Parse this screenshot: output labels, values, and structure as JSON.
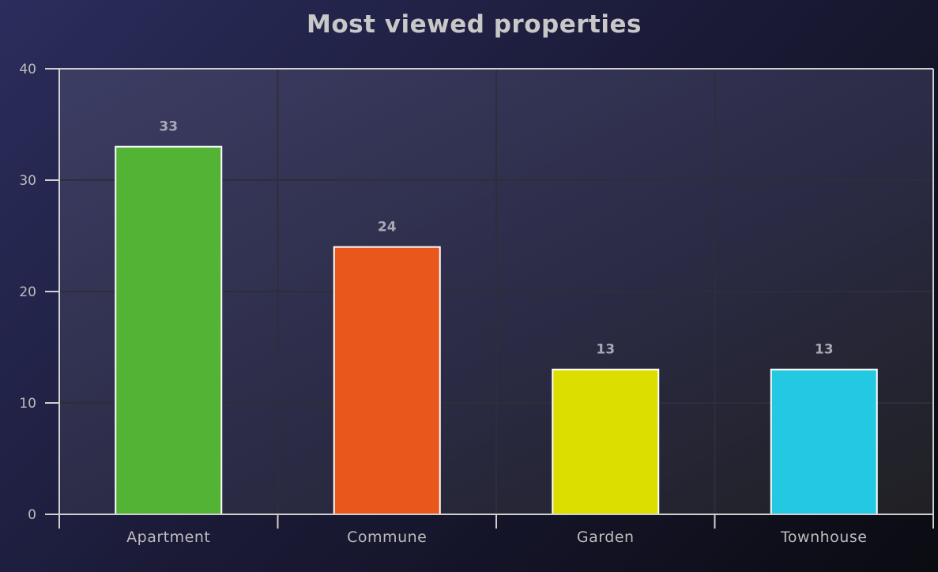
{
  "chart_data": {
    "type": "bar",
    "title": "Most viewed properties",
    "categories": [
      "Apartment",
      "Commune",
      "Garden",
      "Townhouse"
    ],
    "values": [
      33,
      24,
      13,
      13
    ],
    "colors": [
      "#52b335",
      "#e9571d",
      "#dcde00",
      "#25c8e2"
    ],
    "bar_border_color": "#ffffff",
    "yticks": [
      0,
      10,
      20,
      30,
      40
    ],
    "ylim": [
      0,
      40
    ],
    "xlabel": "",
    "ylabel": "",
    "grid": true,
    "legend": "none",
    "data_labels": true
  },
  "theme": {
    "background": "#1a1a36",
    "plot_background": "#30304f",
    "grid_color": "#2e2e3a",
    "axis_color": "#d0d0d0",
    "text_color": "#bdbdbd"
  }
}
